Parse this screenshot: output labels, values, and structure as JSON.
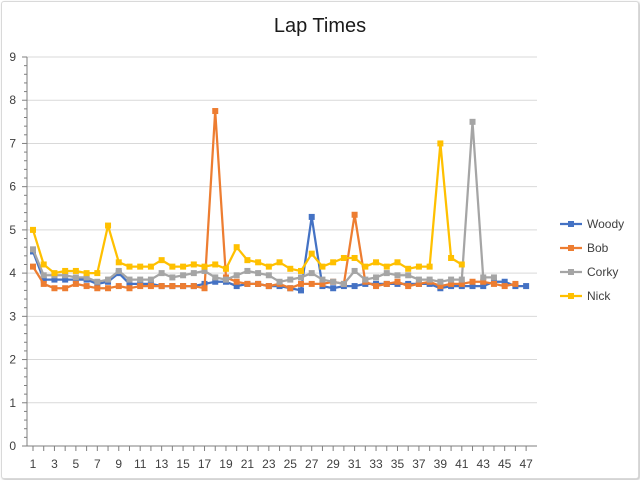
{
  "chart_data": {
    "type": "line",
    "title": "Lap Times",
    "xlabel": "",
    "ylabel": "",
    "xlim": [
      1,
      47
    ],
    "ylim": [
      0,
      9
    ],
    "y_ticks": [
      0,
      1,
      2,
      3,
      4,
      5,
      6,
      7,
      8,
      9
    ],
    "x_ticks": [
      1,
      3,
      5,
      7,
      9,
      11,
      13,
      15,
      17,
      19,
      21,
      23,
      25,
      27,
      29,
      31,
      33,
      35,
      37,
      39,
      41,
      43,
      45,
      47
    ],
    "grid": true,
    "legend_position": "right",
    "series": [
      {
        "name": "Woody",
        "color": "#4472c4",
        "marker": "square",
        "x": [
          1,
          2,
          3,
          4,
          5,
          6,
          7,
          8,
          9,
          10,
          11,
          12,
          13,
          14,
          15,
          16,
          17,
          18,
          19,
          20,
          21,
          22,
          23,
          24,
          25,
          26,
          27,
          28,
          29,
          30,
          31,
          32,
          33,
          34,
          35,
          36,
          37,
          38,
          39,
          40,
          41,
          42,
          43,
          44,
          45,
          46,
          47
        ],
        "values": [
          4.5,
          3.85,
          3.85,
          3.85,
          3.85,
          3.85,
          3.75,
          3.8,
          4.0,
          3.75,
          3.75,
          3.75,
          3.7,
          3.7,
          3.7,
          3.7,
          3.75,
          3.8,
          3.8,
          3.7,
          3.75,
          3.75,
          3.7,
          3.7,
          3.65,
          3.6,
          5.3,
          3.7,
          3.65,
          3.7,
          3.7,
          3.75,
          3.75,
          3.75,
          3.75,
          3.75,
          3.75,
          3.75,
          3.65,
          3.7,
          3.7,
          3.7,
          3.7,
          3.8,
          3.8,
          3.7,
          3.7
        ]
      },
      {
        "name": "Bob",
        "color": "#ed7d31",
        "marker": "square",
        "x": [
          1,
          2,
          3,
          4,
          5,
          6,
          7,
          8,
          9,
          10,
          11,
          12,
          13,
          14,
          15,
          16,
          17,
          18,
          19,
          20,
          21,
          22,
          23,
          24,
          25,
          26,
          27,
          28,
          29,
          30,
          31,
          32,
          33,
          34,
          35,
          36,
          37,
          38,
          39,
          40,
          41,
          42,
          43,
          44,
          45,
          46
        ],
        "values": [
          4.15,
          3.75,
          3.65,
          3.65,
          3.75,
          3.7,
          3.65,
          3.65,
          3.7,
          3.65,
          3.7,
          3.7,
          3.7,
          3.7,
          3.7,
          3.7,
          3.65,
          7.75,
          3.9,
          3.8,
          3.75,
          3.75,
          3.7,
          3.75,
          3.65,
          3.75,
          3.75,
          3.75,
          3.8,
          3.75,
          5.35,
          3.8,
          3.7,
          3.75,
          3.8,
          3.7,
          3.75,
          3.8,
          3.7,
          3.75,
          3.75,
          3.8,
          3.8,
          3.75,
          3.7,
          3.75
        ]
      },
      {
        "name": "Corky",
        "color": "#a5a5a5",
        "marker": "square",
        "x": [
          1,
          2,
          3,
          4,
          5,
          6,
          7,
          8,
          9,
          10,
          11,
          12,
          13,
          14,
          15,
          16,
          17,
          18,
          19,
          20,
          21,
          22,
          23,
          24,
          25,
          26,
          27,
          28,
          29,
          30,
          31,
          32,
          33,
          34,
          35,
          36,
          37,
          38,
          39,
          40,
          41,
          42,
          43,
          44
        ],
        "values": [
          4.55,
          3.95,
          3.95,
          3.95,
          3.9,
          3.9,
          3.8,
          3.85,
          4.05,
          3.85,
          3.85,
          3.85,
          4.0,
          3.9,
          3.95,
          4.0,
          4.05,
          3.9,
          3.85,
          3.95,
          4.05,
          4.0,
          3.95,
          3.8,
          3.85,
          3.9,
          4.0,
          3.85,
          3.8,
          3.75,
          4.05,
          3.85,
          3.9,
          4.0,
          3.95,
          3.95,
          3.85,
          3.85,
          3.8,
          3.85,
          3.85,
          7.5,
          3.9,
          3.9
        ]
      },
      {
        "name": "Nick",
        "color": "#ffc000",
        "marker": "square",
        "x": [
          1,
          2,
          3,
          4,
          5,
          6,
          7,
          8,
          9,
          10,
          11,
          12,
          13,
          14,
          15,
          16,
          17,
          18,
          19,
          20,
          21,
          22,
          23,
          24,
          25,
          26,
          27,
          28,
          29,
          30,
          31,
          32,
          33,
          34,
          35,
          36,
          37,
          38,
          39,
          40,
          41
        ],
        "values": [
          5.0,
          4.2,
          4.0,
          4.05,
          4.05,
          4.0,
          4.0,
          5.1,
          4.25,
          4.15,
          4.15,
          4.15,
          4.3,
          4.15,
          4.15,
          4.2,
          4.15,
          4.2,
          4.1,
          4.6,
          4.3,
          4.25,
          4.15,
          4.25,
          4.1,
          4.05,
          4.45,
          4.15,
          4.25,
          4.35,
          4.35,
          4.15,
          4.25,
          4.15,
          4.25,
          4.1,
          4.15,
          4.15,
          7.0,
          4.35,
          4.2
        ]
      }
    ]
  }
}
